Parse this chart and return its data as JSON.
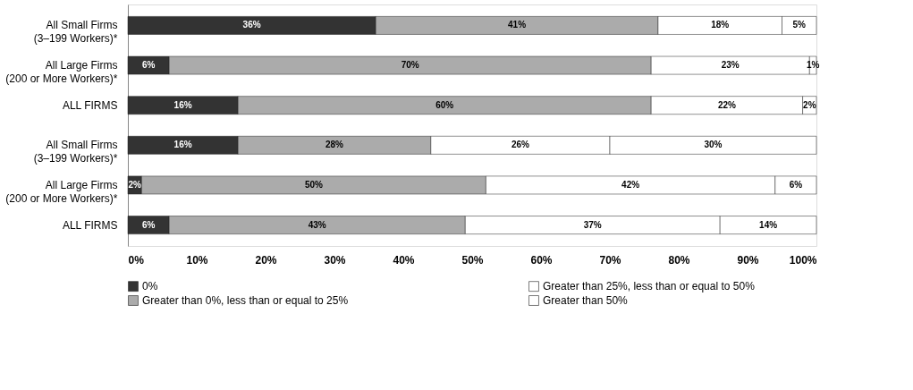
{
  "chart_data": {
    "type": "bar",
    "orientation": "horizontal",
    "stacked": true,
    "categories": [
      "All Small Firms (3–199 Workers)*",
      "All Large Firms (200 or More Workers)*",
      "ALL FIRMS",
      "All Small Firms (3–199 Workers)*",
      "All Large Firms (200 or More Workers)*",
      "ALL FIRMS"
    ],
    "series": [
      {
        "name": "0%",
        "color": "#333333",
        "values": [
          36,
          6,
          16,
          16,
          2,
          6
        ],
        "value_labels": [
          "36%",
          "6%",
          "16%",
          "16%",
          "2%",
          "6%"
        ]
      },
      {
        "name": "Greater than 0%, less than or equal to 25%",
        "color": "#ababab",
        "values": [
          41,
          70,
          60,
          28,
          50,
          43
        ],
        "value_labels": [
          "41%",
          "70%",
          "60%",
          "28%",
          "50%",
          "43%"
        ]
      },
      {
        "name": "Greater than 25%, less than or equal to 50%",
        "color": "#ffffff",
        "values": [
          18,
          23,
          22,
          26,
          42,
          37
        ],
        "value_labels": [
          "18%",
          "23%",
          "22%",
          "26%",
          "42%",
          "37%"
        ]
      },
      {
        "name": "Greater than 50%",
        "color": "#ffffff",
        "values": [
          5,
          1,
          2,
          30,
          6,
          14
        ],
        "value_labels": [
          "5%",
          "1%",
          "2%",
          "30%",
          "6%",
          "14%"
        ]
      }
    ],
    "xlim": [
      0,
      100
    ],
    "xticks": [
      {
        "value": 0,
        "label": "0%"
      },
      {
        "value": 10,
        "label": "10%"
      },
      {
        "value": 20,
        "label": "20%"
      },
      {
        "value": 30,
        "label": "30%"
      },
      {
        "value": 40,
        "label": "40%"
      },
      {
        "value": 50,
        "label": "50%"
      },
      {
        "value": 60,
        "label": "60%"
      },
      {
        "value": 70,
        "label": "70%"
      },
      {
        "value": 80,
        "label": "80%"
      },
      {
        "value": 90,
        "label": "90%"
      },
      {
        "value": 100,
        "label": "100%"
      }
    ],
    "grid": false,
    "legend": "bottom"
  }
}
